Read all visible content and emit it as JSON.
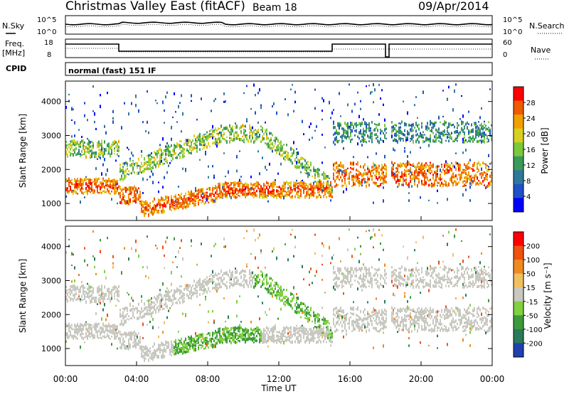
{
  "header": {
    "station": "Christmas Valley East (fitACF)",
    "beam": "Beam 18",
    "date": "09/Apr/2014"
  },
  "noise_panel": {
    "left_label": "N.Sky",
    "right_label": "N.Search",
    "left_ticks": [
      "10^5",
      "10^0"
    ],
    "right_ticks": [
      "10^5",
      "10^0"
    ]
  },
  "freq_panel": {
    "left_label_1": "Freq.",
    "left_label_2": "[MHz]",
    "right_label": "Nave",
    "left_ticks": [
      "18",
      "8"
    ],
    "right_ticks": [
      "60",
      "0"
    ]
  },
  "cpid": {
    "label": "CPID",
    "mode": "normal (fast) 151 IF"
  },
  "chart_data": [
    {
      "type": "heatmap",
      "parameter": "Power",
      "ylabel": "Slant Range [km]",
      "ylim": [
        500,
        4600
      ],
      "yticks": [
        "4000",
        "3000",
        "2000",
        "1000"
      ],
      "xlim": [
        "00:00",
        "24:00"
      ],
      "colorbar_label": "Power [dB]",
      "colorbar_ticks": [
        "28",
        "24",
        "20",
        "16",
        "12",
        "8",
        "4"
      ],
      "colorbar_range": [
        0,
        32
      ],
      "colors": [
        "#0000ff",
        "#2050c8",
        "#30789a",
        "#3a9a5a",
        "#7cc83c",
        "#d8d020",
        "#f0a000",
        "#f05a00",
        "#ff0000"
      ],
      "grid": false
    },
    {
      "type": "heatmap",
      "parameter": "Velocity",
      "ylabel": "Slant Range [km]",
      "ylim": [
        500,
        4600
      ],
      "yticks": [
        "4000",
        "3000",
        "2000",
        "1000"
      ],
      "xlim": [
        "00:00",
        "24:00"
      ],
      "colorbar_label": "Velocity [m s⁻¹]",
      "colorbar_ticks": [
        "200",
        "100",
        "50",
        "15",
        "-15",
        "-50",
        "-100",
        "-200"
      ],
      "colors": [
        "#2040b0",
        "#2a7a5a",
        "#3c9a3c",
        "#80d040",
        "#c8c8c0",
        "#f0c060",
        "#f08a20",
        "#f05010",
        "#ff0000"
      ],
      "grid": false
    }
  ],
  "xaxis": {
    "ticks": [
      "00:00",
      "04:00",
      "08:00",
      "12:00",
      "16:00",
      "20:00",
      "00:00"
    ],
    "label": "Time UT"
  }
}
